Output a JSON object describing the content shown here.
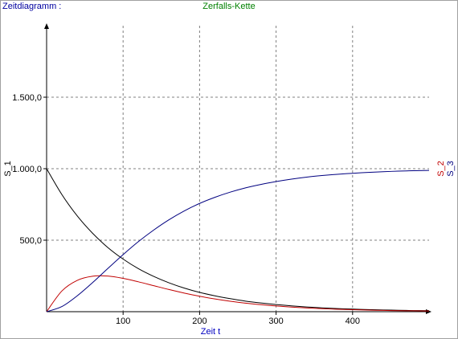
{
  "header": {
    "left_label": "Zeitdiagramm :",
    "title": "Zerfalls-Kette"
  },
  "chart_data": {
    "type": "line",
    "title": "Zerfalls-Kette",
    "xlabel": "Zeit t",
    "ylabel_left": "S_1",
    "ylabels_right": [
      "S_2",
      "S_3"
    ],
    "xlim": [
      0,
      500
    ],
    "ylim": [
      0,
      2000
    ],
    "x_ticks": [
      100,
      200,
      300,
      400
    ],
    "x_tick_labels": [
      "100",
      "200",
      "300",
      "400"
    ],
    "y_ticks": [
      500,
      1000,
      1500
    ],
    "y_tick_labels": [
      "500,0",
      "1.000,0",
      "1.500,0"
    ],
    "grid": true,
    "x": [
      0,
      20,
      40,
      60,
      80,
      100,
      120,
      140,
      160,
      180,
      200,
      220,
      240,
      260,
      280,
      300,
      320,
      340,
      360,
      380,
      400,
      420,
      440,
      460,
      480,
      500
    ],
    "series": [
      {
        "name": "S_1",
        "color": "#000000",
        "values": [
          1000,
          819,
          670,
          549,
          449,
          368,
          301,
          247,
          202,
          165,
          135,
          111,
          91,
          74,
          61,
          50,
          41,
          33,
          27,
          22,
          18,
          15,
          12,
          10,
          8,
          7
        ]
      },
      {
        "name": "S_2",
        "color": "#c00000",
        "values": [
          0,
          145,
          219,
          248,
          249,
          233,
          209,
          182,
          155,
          130,
          108,
          89,
          73,
          60,
          49,
          40,
          32,
          26,
          21,
          17,
          14,
          11,
          9,
          7,
          6,
          5
        ]
      },
      {
        "name": "S_3",
        "color": "#000080",
        "values": [
          0,
          36,
          111,
          203,
          302,
          399,
          490,
          571,
          643,
          705,
          757,
          800,
          836,
          866,
          890,
          910,
          927,
          941,
          952,
          961,
          968,
          974,
          979,
          983,
          986,
          988
        ]
      }
    ]
  }
}
